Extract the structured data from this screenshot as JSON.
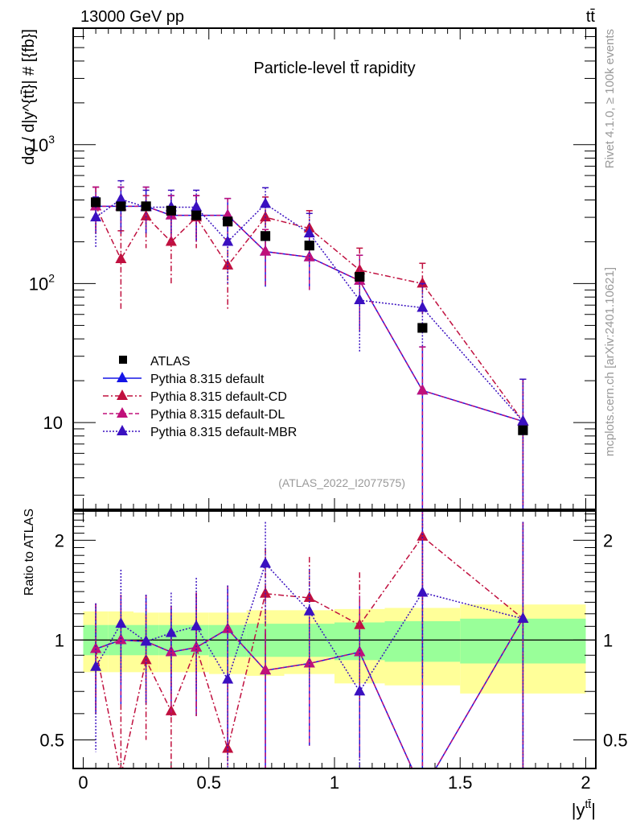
{
  "header": {
    "left_label": "13000 GeV pp",
    "right_label": "tt̄"
  },
  "side_labels": {
    "rivet": "Rivet 4.1.0, ≥ 100k events",
    "mcplots": "mcplots.cern.ch [arXiv:2401.10621]"
  },
  "analysis_tag": "(ATLAS_2022_I2077575)",
  "chart_data": [
    {
      "type": "line",
      "panel": "main",
      "title": "Particle-level tt̄ rapidity",
      "xlabel": "|y^{tt̄}|",
      "ylabel": "dσ / d|y^{tt̄}| # [{fb}]",
      "yscale": "log",
      "xlim": [
        -0.04,
        2.04
      ],
      "ylim": [
        2.37,
        6900
      ],
      "ytick_labels": [
        {
          "value": 1000,
          "label": "10",
          "sup": "3"
        },
        {
          "value": 100,
          "label": "10",
          "sup": "2"
        },
        {
          "value": 10,
          "label": "10",
          "sup": ""
        }
      ],
      "bin_edges": [
        0,
        0.1,
        0.2,
        0.3,
        0.4,
        0.5,
        0.65,
        0.8,
        1.0,
        1.2,
        1.5,
        2.0
      ],
      "x": [
        0.05,
        0.15,
        0.25,
        0.35,
        0.45,
        0.575,
        0.725,
        0.9,
        1.1,
        1.35,
        1.75
      ],
      "legend_position": "bottom-left",
      "series": [
        {
          "name": "ATLAS",
          "style": "data",
          "color": "#000000",
          "values": [
            385,
            360,
            360,
            335,
            310,
            280,
            220,
            188,
            112,
            48,
            8.8
          ]
        },
        {
          "name": "Pythia 8.315 default",
          "style": "solid",
          "color": "#1515e6",
          "values": [
            360,
            360,
            360,
            310,
            310,
            310,
            170,
            155,
            105,
            17,
            10.2
          ],
          "err_low": [
            230,
            230,
            230,
            200,
            200,
            200,
            95,
            90,
            45,
            2,
            2
          ],
          "err_high": [
            495,
            495,
            495,
            430,
            430,
            410,
            245,
            225,
            160,
            35,
            20.5
          ]
        },
        {
          "name": "Pythia 8.315 default-CD",
          "style": "dashdot",
          "color": "#c0103f",
          "values": [
            360,
            150,
            305,
            200,
            300,
            135,
            300,
            250,
            125,
            100,
            10.2
          ],
          "err_low": [
            230,
            65,
            180,
            100,
            180,
            65,
            190,
            150,
            75,
            60,
            2
          ],
          "err_high": [
            495,
            240,
            430,
            300,
            430,
            210,
            420,
            335,
            180,
            140,
            20.5
          ]
        },
        {
          "name": "Pythia 8.315 default-DL",
          "style": "dashed",
          "color": "#c0107a",
          "values": [
            360,
            360,
            360,
            310,
            310,
            310,
            170,
            155,
            105,
            17,
            10.2
          ],
          "err_low": [
            230,
            230,
            230,
            200,
            200,
            200,
            95,
            90,
            45,
            2,
            2
          ],
          "err_high": [
            495,
            495,
            495,
            430,
            430,
            410,
            245,
            225,
            160,
            35,
            20.5
          ]
        },
        {
          "name": "Pythia 8.315 default-MBR",
          "style": "dotted",
          "color": "#3a10c0",
          "values": [
            300,
            405,
            355,
            355,
            355,
            200,
            375,
            230,
            76,
            67,
            10.2
          ],
          "err_low": [
            180,
            230,
            230,
            230,
            200,
            100,
            250,
            140,
            32,
            35,
            2
          ],
          "err_high": [
            420,
            550,
            470,
            470,
            470,
            300,
            490,
            320,
            120,
            100,
            20.5
          ]
        }
      ]
    },
    {
      "type": "line",
      "panel": "ratio",
      "ylabel": "Ratio to ATLAS",
      "yscale": "log",
      "xlim": [
        -0.04,
        2.04
      ],
      "ylim": [
        0.41,
        2.45
      ],
      "yticks": [
        0.5,
        1,
        2
      ],
      "xticks": [
        0,
        0.5,
        1,
        1.5,
        2
      ],
      "xtick_labels": [
        "0",
        "0.5",
        "1",
        "1.5",
        "2"
      ],
      "bands": {
        "yellow_color": "#ffff99",
        "green_color": "#99ff99",
        "yellow_low": [
          0.8,
          0.8,
          0.8,
          0.8,
          0.8,
          0.79,
          0.78,
          0.79,
          0.74,
          0.73,
          0.69
        ],
        "yellow_high": [
          1.22,
          1.22,
          1.21,
          1.21,
          1.21,
          1.21,
          1.23,
          1.23,
          1.24,
          1.25,
          1.28
        ],
        "green_low": [
          0.9,
          0.9,
          0.9,
          0.9,
          0.9,
          0.89,
          0.89,
          0.89,
          0.87,
          0.86,
          0.85
        ],
        "green_high": [
          1.11,
          1.11,
          1.11,
          1.11,
          1.11,
          1.11,
          1.12,
          1.12,
          1.13,
          1.14,
          1.16
        ]
      },
      "series": [
        {
          "name": "Pythia 8.315 default",
          "values": [
            0.94,
            1.0,
            0.99,
            0.92,
            0.95,
            1.08,
            0.81,
            0.85,
            0.92,
            0.35,
            1.16
          ],
          "err_low": [
            0.6,
            0.64,
            0.64,
            0.59,
            0.59,
            0.45,
            0.38,
            0.48,
            0.44,
            0.01,
            0.01
          ],
          "err_high": [
            1.29,
            1.37,
            1.37,
            1.27,
            1.39,
            1.46,
            1.07,
            1.18,
            1.36,
            3.0,
            2.27
          ]
        },
        {
          "name": "Pythia 8.315 default-CD",
          "values": [
            0.94,
            0.39,
            0.87,
            0.61,
            0.95,
            0.47,
            1.38,
            1.34,
            1.11,
            2.05,
            1.16
          ],
          "err_low": [
            0.6,
            0.17,
            0.5,
            0.3,
            0.59,
            0.23,
            0.87,
            0.8,
            0.67,
            1.25,
            0.01
          ],
          "err_high": [
            1.29,
            0.64,
            1.19,
            0.89,
            1.39,
            0.74,
            1.89,
            1.78,
            1.6,
            2.9,
            2.27
          ]
        },
        {
          "name": "Pythia 8.315 default-DL",
          "values": [
            0.94,
            1.0,
            0.99,
            0.92,
            0.95,
            1.08,
            0.81,
            0.85,
            0.92,
            0.35,
            1.16
          ],
          "err_low": [
            0.6,
            0.64,
            0.64,
            0.59,
            0.59,
            0.45,
            0.38,
            0.48,
            0.44,
            0.01,
            0.01
          ],
          "err_high": [
            1.29,
            1.37,
            1.37,
            1.27,
            1.39,
            1.46,
            1.07,
            1.18,
            1.36,
            3.0,
            2.27
          ]
        },
        {
          "name": "Pythia 8.315 default-MBR",
          "values": [
            0.83,
            1.12,
            0.99,
            1.05,
            1.1,
            0.76,
            1.7,
            1.22,
            0.7,
            1.39,
            1.16
          ],
          "err_low": [
            0.46,
            0.74,
            0.64,
            0.69,
            0.7,
            0.38,
            1.12,
            0.74,
            0.32,
            0.77,
            0.01
          ],
          "err_high": [
            1.29,
            1.63,
            1.37,
            1.39,
            1.54,
            1.46,
            2.27,
            1.64,
            1.07,
            2.6,
            2.27
          ]
        }
      ]
    }
  ]
}
